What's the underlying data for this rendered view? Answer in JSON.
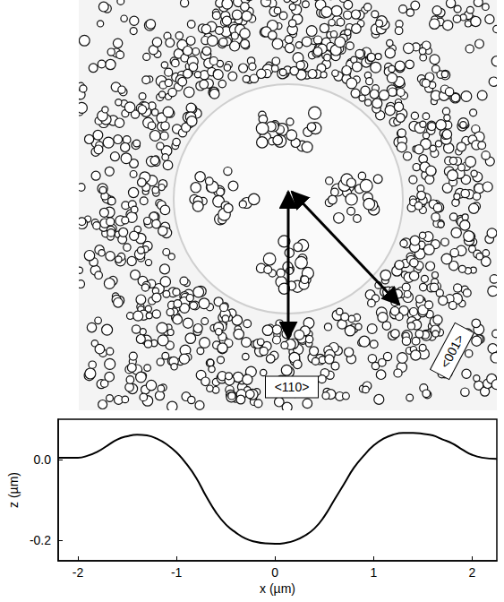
{
  "chart_data": {
    "type": "line",
    "xlabel": "x (µm)",
    "ylabel": "z (µm)",
    "annotations": [
      "<110>",
      "<001>"
    ],
    "color": "#000000",
    "grid": false,
    "xlim": [
      -2.2,
      2.25
    ],
    "ylim": [
      -0.25,
      0.1
    ],
    "xticks": [
      -2,
      -1,
      0,
      1,
      2
    ],
    "yticks": [
      {
        "value": 0,
        "label": "0.0"
      },
      {
        "value": -0.2,
        "label": "-0.2"
      }
    ],
    "x": [
      -2.2,
      -2.0,
      -1.9,
      -1.8,
      -1.7,
      -1.6,
      -1.5,
      -1.4,
      -1.3,
      -1.2,
      -1.1,
      -1.0,
      -0.9,
      -0.8,
      -0.7,
      -0.6,
      -0.5,
      -0.4,
      -0.3,
      -0.2,
      -0.1,
      0.0,
      0.1,
      0.2,
      0.3,
      0.4,
      0.5,
      0.6,
      0.7,
      0.8,
      0.9,
      1.0,
      1.1,
      1.2,
      1.3,
      1.4,
      1.5,
      1.6,
      1.7,
      1.8,
      1.9,
      2.0,
      2.1,
      2.25
    ],
    "values": [
      0.005,
      0.005,
      0.01,
      0.02,
      0.035,
      0.05,
      0.058,
      0.062,
      0.06,
      0.052,
      0.038,
      0.018,
      -0.01,
      -0.045,
      -0.09,
      -0.13,
      -0.16,
      -0.18,
      -0.195,
      -0.203,
      -0.207,
      -0.208,
      -0.206,
      -0.2,
      -0.188,
      -0.17,
      -0.14,
      -0.1,
      -0.06,
      -0.02,
      0.01,
      0.035,
      0.052,
      0.062,
      0.066,
      0.066,
      0.064,
      0.06,
      0.05,
      0.04,
      0.025,
      0.012,
      0.005,
      0.002
    ]
  }
}
